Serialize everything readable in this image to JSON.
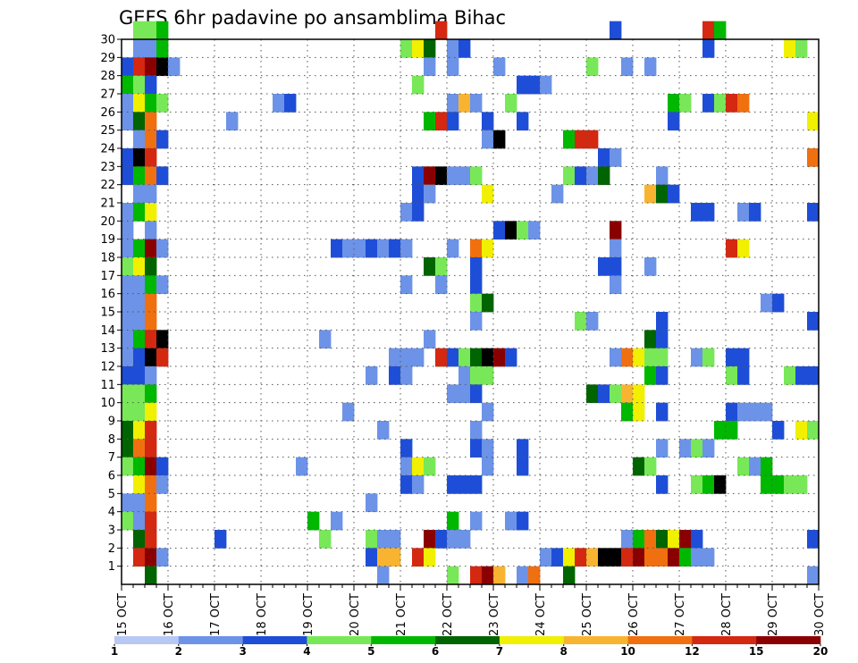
{
  "chart_data": {
    "type": "heatmap",
    "title": "GEFS 6hr padavine po ansamblima Bihac",
    "xlabel": "",
    "ylabel": "",
    "x_ticks": [
      "15 OCT",
      "16 OCT",
      "17 OCT",
      "18 OCT",
      "19 OCT",
      "20 OCT",
      "21 OCT",
      "22 OCT",
      "23 OCT",
      "24 OCT",
      "25 OCT",
      "26 OCT",
      "27 OCT",
      "28 OCT",
      "29 OCT",
      "30 OCT"
    ],
    "y_ticks": [
      "1",
      "2",
      "3",
      "4",
      "5",
      "6",
      "7",
      "8",
      "9",
      "10",
      "11",
      "12",
      "13",
      "14",
      "15",
      "16",
      "17",
      "18",
      "19",
      "20",
      "21",
      "22",
      "23",
      "24",
      "25",
      "26",
      "27",
      "28",
      "29",
      "30"
    ],
    "x_unit": "6-hour steps from 15 OCT 00Z",
    "y_range": [
      0,
      30
    ],
    "grid": true,
    "colorbar": {
      "levels": [
        "1",
        "2",
        "3",
        "4",
        "5",
        "6",
        "7",
        "8",
        "10",
        "12",
        "15",
        "20"
      ],
      "colors": [
        "#b8c8f4",
        "#6c93e8",
        "#1e4ed8",
        "#78e858",
        "#00b800",
        "#006400",
        "#f0f000",
        "#f8b430",
        "#f07010",
        "#d42810",
        "#8a0000"
      ],
      "placement": "bottom"
    },
    "cells": [
      [
        30,
        1,
        3
      ],
      [
        30,
        2,
        3
      ],
      [
        30,
        3,
        4
      ],
      [
        30,
        27,
        9
      ],
      [
        30,
        42,
        2
      ],
      [
        30,
        50,
        9
      ],
      [
        30,
        51,
        4
      ],
      [
        29,
        1,
        1
      ],
      [
        29,
        2,
        1
      ],
      [
        29,
        3,
        4
      ],
      [
        29,
        24,
        3
      ],
      [
        29,
        25,
        6
      ],
      [
        29,
        26,
        5
      ],
      [
        29,
        28,
        1
      ],
      [
        29,
        29,
        2
      ],
      [
        29,
        50,
        2
      ],
      [
        29,
        57,
        6
      ],
      [
        29,
        58,
        3
      ],
      [
        28,
        0,
        2
      ],
      [
        28,
        1,
        9
      ],
      [
        28,
        2,
        10
      ],
      [
        28,
        3,
        11
      ],
      [
        28,
        4,
        1
      ],
      [
        28,
        26,
        1
      ],
      [
        28,
        28,
        1
      ],
      [
        28,
        32,
        1
      ],
      [
        28,
        40,
        3
      ],
      [
        28,
        43,
        1
      ],
      [
        28,
        45,
        1
      ],
      [
        27,
        0,
        4
      ],
      [
        27,
        1,
        3
      ],
      [
        27,
        2,
        2
      ],
      [
        27,
        25,
        3
      ],
      [
        27,
        34,
        2
      ],
      [
        27,
        35,
        2
      ],
      [
        27,
        36,
        1
      ],
      [
        26,
        0,
        1
      ],
      [
        26,
        1,
        6
      ],
      [
        26,
        2,
        4
      ],
      [
        26,
        3,
        3
      ],
      [
        26,
        13,
        1
      ],
      [
        26,
        14,
        2
      ],
      [
        26,
        28,
        1
      ],
      [
        26,
        29,
        7
      ],
      [
        26,
        30,
        1
      ],
      [
        26,
        33,
        3
      ],
      [
        26,
        47,
        4
      ],
      [
        26,
        48,
        3
      ],
      [
        26,
        50,
        2
      ],
      [
        26,
        51,
        3
      ],
      [
        26,
        52,
        9
      ],
      [
        26,
        53,
        8
      ],
      [
        25,
        0,
        1
      ],
      [
        25,
        1,
        5
      ],
      [
        25,
        2,
        8
      ],
      [
        25,
        9,
        1
      ],
      [
        25,
        26,
        4
      ],
      [
        25,
        27,
        9
      ],
      [
        25,
        28,
        2
      ],
      [
        25,
        31,
        2
      ],
      [
        25,
        34,
        2
      ],
      [
        25,
        47,
        2
      ],
      [
        25,
        59,
        6
      ],
      [
        24,
        1,
        1
      ],
      [
        24,
        2,
        8
      ],
      [
        24,
        3,
        2
      ],
      [
        24,
        31,
        1
      ],
      [
        24,
        32,
        11
      ],
      [
        24,
        38,
        4
      ],
      [
        24,
        39,
        9
      ],
      [
        24,
        40,
        9
      ],
      [
        23,
        0,
        2
      ],
      [
        23,
        1,
        11
      ],
      [
        23,
        2,
        9
      ],
      [
        23,
        41,
        2
      ],
      [
        23,
        42,
        1
      ],
      [
        23,
        59,
        8
      ],
      [
        22,
        0,
        2
      ],
      [
        22,
        1,
        4
      ],
      [
        22,
        2,
        8
      ],
      [
        22,
        3,
        2
      ],
      [
        22,
        25,
        2
      ],
      [
        22,
        26,
        10
      ],
      [
        22,
        27,
        11
      ],
      [
        22,
        28,
        1
      ],
      [
        22,
        29,
        1
      ],
      [
        22,
        30,
        3
      ],
      [
        22,
        38,
        3
      ],
      [
        22,
        39,
        2
      ],
      [
        22,
        40,
        1
      ],
      [
        22,
        41,
        5
      ],
      [
        22,
        46,
        1
      ],
      [
        21,
        1,
        1
      ],
      [
        21,
        2,
        1
      ],
      [
        21,
        25,
        2
      ],
      [
        21,
        26,
        1
      ],
      [
        21,
        31,
        6
      ],
      [
        21,
        37,
        1
      ],
      [
        21,
        45,
        7
      ],
      [
        21,
        46,
        5
      ],
      [
        21,
        47,
        2
      ],
      [
        20,
        0,
        1
      ],
      [
        20,
        1,
        4
      ],
      [
        20,
        2,
        6
      ],
      [
        20,
        24,
        1
      ],
      [
        20,
        25,
        2
      ],
      [
        20,
        49,
        2
      ],
      [
        20,
        50,
        2
      ],
      [
        20,
        53,
        1
      ],
      [
        20,
        54,
        2
      ],
      [
        20,
        59,
        2
      ],
      [
        19,
        0,
        1
      ],
      [
        19,
        2,
        1
      ],
      [
        19,
        32,
        2
      ],
      [
        19,
        33,
        11
      ],
      [
        19,
        34,
        3
      ],
      [
        19,
        35,
        1
      ],
      [
        19,
        42,
        10
      ],
      [
        18,
        0,
        1
      ],
      [
        18,
        1,
        4
      ],
      [
        18,
        2,
        10
      ],
      [
        18,
        3,
        1
      ],
      [
        18,
        18,
        2
      ],
      [
        18,
        19,
        1
      ],
      [
        18,
        20,
        1
      ],
      [
        18,
        21,
        2
      ],
      [
        18,
        22,
        1
      ],
      [
        18,
        23,
        2
      ],
      [
        18,
        24,
        1
      ],
      [
        18,
        28,
        1
      ],
      [
        18,
        30,
        8
      ],
      [
        18,
        31,
        6
      ],
      [
        18,
        42,
        1
      ],
      [
        18,
        52,
        9
      ],
      [
        18,
        53,
        6
      ],
      [
        17,
        0,
        3
      ],
      [
        17,
        1,
        6
      ],
      [
        17,
        2,
        5
      ],
      [
        17,
        26,
        5
      ],
      [
        17,
        27,
        3
      ],
      [
        17,
        30,
        2
      ],
      [
        17,
        41,
        2
      ],
      [
        17,
        42,
        2
      ],
      [
        17,
        45,
        1
      ],
      [
        16,
        0,
        1
      ],
      [
        16,
        1,
        1
      ],
      [
        16,
        2,
        4
      ],
      [
        16,
        3,
        1
      ],
      [
        16,
        24,
        1
      ],
      [
        16,
        27,
        1
      ],
      [
        16,
        30,
        2
      ],
      [
        16,
        42,
        1
      ],
      [
        15,
        0,
        1
      ],
      [
        15,
        1,
        1
      ],
      [
        15,
        2,
        8
      ],
      [
        15,
        30,
        3
      ],
      [
        15,
        31,
        5
      ],
      [
        15,
        55,
        1
      ],
      [
        15,
        56,
        2
      ],
      [
        14,
        0,
        1
      ],
      [
        14,
        1,
        1
      ],
      [
        14,
        2,
        8
      ],
      [
        14,
        30,
        1
      ],
      [
        14,
        39,
        3
      ],
      [
        14,
        40,
        1
      ],
      [
        14,
        46,
        2
      ],
      [
        14,
        59,
        2
      ],
      [
        13,
        0,
        1
      ],
      [
        13,
        1,
        4
      ],
      [
        13,
        2,
        9
      ],
      [
        13,
        3,
        11
      ],
      [
        13,
        17,
        1
      ],
      [
        13,
        26,
        1
      ],
      [
        13,
        45,
        5
      ],
      [
        13,
        46,
        2
      ],
      [
        12,
        0,
        1
      ],
      [
        12,
        1,
        2
      ],
      [
        12,
        2,
        11
      ],
      [
        12,
        3,
        9
      ],
      [
        12,
        23,
        1
      ],
      [
        12,
        24,
        1
      ],
      [
        12,
        25,
        1
      ],
      [
        12,
        27,
        9
      ],
      [
        12,
        28,
        2
      ],
      [
        12,
        29,
        3
      ],
      [
        12,
        30,
        5
      ],
      [
        12,
        31,
        11
      ],
      [
        12,
        32,
        10
      ],
      [
        12,
        33,
        2
      ],
      [
        12,
        42,
        1
      ],
      [
        12,
        43,
        8
      ],
      [
        12,
        44,
        6
      ],
      [
        12,
        45,
        3
      ],
      [
        12,
        46,
        3
      ],
      [
        12,
        49,
        1
      ],
      [
        12,
        50,
        3
      ],
      [
        12,
        52,
        2
      ],
      [
        12,
        53,
        2
      ],
      [
        11,
        0,
        2
      ],
      [
        11,
        1,
        2
      ],
      [
        11,
        2,
        1
      ],
      [
        11,
        21,
        1
      ],
      [
        11,
        23,
        2
      ],
      [
        11,
        24,
        1
      ],
      [
        11,
        29,
        1
      ],
      [
        11,
        30,
        3
      ],
      [
        11,
        31,
        3
      ],
      [
        11,
        45,
        4
      ],
      [
        11,
        46,
        2
      ],
      [
        11,
        52,
        3
      ],
      [
        11,
        53,
        2
      ],
      [
        11,
        57,
        3
      ],
      [
        11,
        58,
        2
      ],
      [
        11,
        59,
        2
      ],
      [
        10,
        0,
        3
      ],
      [
        10,
        1,
        3
      ],
      [
        10,
        2,
        4
      ],
      [
        10,
        28,
        1
      ],
      [
        10,
        29,
        1
      ],
      [
        10,
        30,
        2
      ],
      [
        10,
        40,
        5
      ],
      [
        10,
        41,
        2
      ],
      [
        10,
        42,
        3
      ],
      [
        10,
        43,
        7
      ],
      [
        10,
        44,
        6
      ],
      [
        9,
        0,
        3
      ],
      [
        9,
        1,
        3
      ],
      [
        9,
        2,
        6
      ],
      [
        9,
        19,
        1
      ],
      [
        9,
        31,
        1
      ],
      [
        9,
        43,
        4
      ],
      [
        9,
        44,
        6
      ],
      [
        9,
        46,
        2
      ],
      [
        9,
        52,
        2
      ],
      [
        9,
        53,
        1
      ],
      [
        9,
        54,
        1
      ],
      [
        9,
        55,
        1
      ],
      [
        8,
        0,
        5
      ],
      [
        8,
        1,
        6
      ],
      [
        8,
        2,
        9
      ],
      [
        8,
        22,
        1
      ],
      [
        8,
        30,
        1
      ],
      [
        8,
        51,
        4
      ],
      [
        8,
        52,
        4
      ],
      [
        8,
        56,
        2
      ],
      [
        8,
        58,
        6
      ],
      [
        8,
        59,
        3
      ],
      [
        7,
        0,
        5
      ],
      [
        7,
        1,
        8
      ],
      [
        7,
        2,
        9
      ],
      [
        7,
        24,
        2
      ],
      [
        7,
        30,
        2
      ],
      [
        7,
        31,
        1
      ],
      [
        7,
        34,
        2
      ],
      [
        7,
        46,
        1
      ],
      [
        7,
        48,
        1
      ],
      [
        7,
        49,
        3
      ],
      [
        7,
        50,
        1
      ],
      [
        6,
        0,
        3
      ],
      [
        6,
        1,
        4
      ],
      [
        6,
        2,
        10
      ],
      [
        6,
        3,
        2
      ],
      [
        6,
        15,
        1
      ],
      [
        6,
        24,
        1
      ],
      [
        6,
        25,
        6
      ],
      [
        6,
        26,
        3
      ],
      [
        6,
        31,
        1
      ],
      [
        6,
        34,
        2
      ],
      [
        6,
        44,
        5
      ],
      [
        6,
        45,
        3
      ],
      [
        6,
        53,
        3
      ],
      [
        6,
        54,
        1
      ],
      [
        6,
        55,
        4
      ],
      [
        5,
        1,
        6
      ],
      [
        5,
        2,
        8
      ],
      [
        5,
        3,
        1
      ],
      [
        5,
        24,
        2
      ],
      [
        5,
        25,
        1
      ],
      [
        5,
        28,
        2
      ],
      [
        5,
        29,
        2
      ],
      [
        5,
        30,
        2
      ],
      [
        5,
        46,
        2
      ],
      [
        5,
        49,
        3
      ],
      [
        5,
        50,
        4
      ],
      [
        5,
        51,
        11
      ],
      [
        5,
        55,
        4
      ],
      [
        5,
        56,
        4
      ],
      [
        5,
        57,
        3
      ],
      [
        5,
        58,
        3
      ],
      [
        4,
        0,
        1
      ],
      [
        4,
        1,
        1
      ],
      [
        4,
        2,
        8
      ],
      [
        4,
        21,
        1
      ],
      [
        3,
        0,
        3
      ],
      [
        3,
        1,
        1
      ],
      [
        3,
        2,
        9
      ],
      [
        3,
        16,
        4
      ],
      [
        3,
        18,
        1
      ],
      [
        3,
        28,
        4
      ],
      [
        3,
        30,
        1
      ],
      [
        3,
        33,
        1
      ],
      [
        3,
        34,
        2
      ],
      [
        2,
        1,
        5
      ],
      [
        2,
        2,
        9
      ],
      [
        2,
        8,
        2
      ],
      [
        2,
        17,
        3
      ],
      [
        2,
        21,
        3
      ],
      [
        2,
        22,
        1
      ],
      [
        2,
        23,
        1
      ],
      [
        2,
        26,
        10
      ],
      [
        2,
        27,
        2
      ],
      [
        2,
        28,
        1
      ],
      [
        2,
        29,
        1
      ],
      [
        2,
        43,
        1
      ],
      [
        2,
        44,
        4
      ],
      [
        2,
        45,
        8
      ],
      [
        2,
        46,
        5
      ],
      [
        2,
        47,
        6
      ],
      [
        2,
        48,
        10
      ],
      [
        2,
        49,
        2
      ],
      [
        2,
        59,
        2
      ],
      [
        1,
        1,
        9
      ],
      [
        1,
        2,
        10
      ],
      [
        1,
        3,
        1
      ],
      [
        1,
        21,
        2
      ],
      [
        1,
        22,
        7
      ],
      [
        1,
        23,
        7
      ],
      [
        1,
        25,
        9
      ],
      [
        1,
        26,
        6
      ],
      [
        1,
        36,
        1
      ],
      [
        1,
        37,
        2
      ],
      [
        1,
        38,
        6
      ],
      [
        1,
        39,
        9
      ],
      [
        1,
        40,
        7
      ],
      [
        1,
        41,
        11
      ],
      [
        1,
        42,
        11
      ],
      [
        1,
        43,
        9
      ],
      [
        1,
        44,
        10
      ],
      [
        1,
        45,
        8
      ],
      [
        1,
        46,
        8
      ],
      [
        1,
        47,
        10
      ],
      [
        1,
        48,
        4
      ],
      [
        1,
        49,
        1
      ],
      [
        1,
        50,
        1
      ],
      [
        0,
        2,
        5
      ],
      [
        0,
        22,
        1
      ],
      [
        0,
        28,
        3
      ],
      [
        0,
        30,
        9
      ],
      [
        0,
        31,
        10
      ],
      [
        0,
        32,
        7
      ],
      [
        0,
        34,
        1
      ],
      [
        0,
        35,
        8
      ],
      [
        0,
        38,
        5
      ],
      [
        0,
        59,
        1
      ]
    ]
  }
}
